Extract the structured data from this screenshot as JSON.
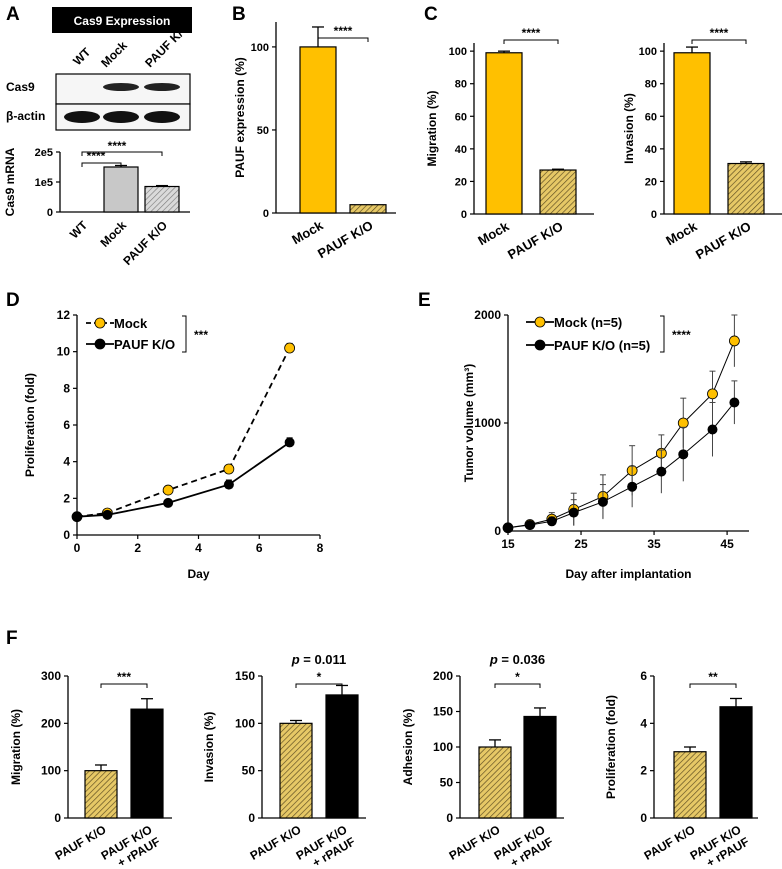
{
  "colors": {
    "yellow": "#FFC000",
    "hatch_bg": "#E6C866",
    "black": "#000000",
    "gray_bar": "#C8C8C8",
    "gray_hatch": "#D4D4D4"
  },
  "labels": {
    "A": "A",
    "B": "B",
    "C": "C",
    "D": "D",
    "E": "E",
    "F": "F"
  },
  "panel_a": {
    "header": "Cas9  Expression",
    "lanes": [
      "WT",
      "Mock",
      "PAUF K/O"
    ],
    "rows": [
      "Cas9",
      "β-actin"
    ],
    "sig": [
      "****",
      "****"
    ]
  },
  "chart_data": [
    {
      "id": "a_mrna",
      "type": "bar",
      "ylabel": "Cas9 mRNA",
      "categories": [
        "WT",
        "Mock",
        "PAUF K/O"
      ],
      "values": [
        0,
        150000,
        85000
      ],
      "errors": [
        0,
        5000,
        3000
      ],
      "ylim": [
        0,
        200000
      ],
      "yticks": [
        0,
        100000,
        200000
      ],
      "yticklabels": [
        "0",
        "1e5",
        "2e5"
      ],
      "styles": [
        "gray",
        "gray",
        "grayhatch"
      ]
    },
    {
      "id": "b",
      "type": "bar",
      "ylabel": "PAUF expression (%)",
      "categories": [
        "Mock",
        "PAUF K/O"
      ],
      "values": [
        100,
        5
      ],
      "errors": [
        12,
        0
      ],
      "ylim": [
        0,
        115
      ],
      "yticks": [
        0,
        50,
        100
      ],
      "yticklabels": [
        "0",
        "50",
        "100"
      ],
      "styles": [
        "yellow",
        "hatch"
      ],
      "sig": "****"
    },
    {
      "id": "c1",
      "type": "bar",
      "ylabel": "Migration (%)",
      "categories": [
        "Mock",
        "PAUF K/O"
      ],
      "values": [
        99,
        27
      ],
      "errors": [
        1,
        0.5
      ],
      "ylim": [
        0,
        105
      ],
      "yticks": [
        0,
        20,
        40,
        60,
        80,
        100
      ],
      "yticklabels": [
        "0",
        "20",
        "40",
        "60",
        "80",
        "100"
      ],
      "styles": [
        "yellow",
        "hatch"
      ],
      "sig": "****"
    },
    {
      "id": "c2",
      "type": "bar",
      "ylabel": "Invasion (%)",
      "categories": [
        "Mock",
        "PAUF K/O"
      ],
      "values": [
        99,
        31
      ],
      "errors": [
        3.5,
        1
      ],
      "ylim": [
        0,
        105
      ],
      "yticks": [
        0,
        20,
        40,
        60,
        80,
        100
      ],
      "yticklabels": [
        "0",
        "20",
        "40",
        "60",
        "80",
        "100"
      ],
      "styles": [
        "yellow",
        "hatch"
      ],
      "sig": "****"
    },
    {
      "id": "d",
      "type": "line",
      "xlabel": "Day",
      "ylabel": "Proliferation (fold)",
      "xlim": [
        0,
        8
      ],
      "ylim": [
        0,
        12
      ],
      "xticks": [
        0,
        2,
        4,
        6,
        8
      ],
      "yticks": [
        0,
        2,
        4,
        6,
        8,
        10,
        12
      ],
      "series": [
        {
          "name": "Mock",
          "x": [
            0,
            1,
            3,
            5,
            7
          ],
          "y": [
            1,
            1.2,
            2.45,
            3.6,
            10.2
          ],
          "err": [
            0.05,
            0.1,
            0.1,
            0.2,
            0.25
          ],
          "style": "dashed",
          "marker": "yellow"
        },
        {
          "name": "PAUF K/O",
          "x": [
            0,
            1,
            3,
            5,
            7
          ],
          "y": [
            1,
            1.1,
            1.75,
            2.75,
            5.05
          ],
          "err": [
            0.05,
            0.05,
            0.1,
            0.25,
            0.25
          ],
          "style": "solid",
          "marker": "black"
        }
      ],
      "sig": "***"
    },
    {
      "id": "e",
      "type": "line",
      "xlabel": "Day after implantation",
      "ylabel": "Tumor volume (mm³)",
      "xlim": [
        15,
        48
      ],
      "ylim": [
        0,
        2000
      ],
      "xticks": [
        15,
        25,
        35,
        45
      ],
      "yticks": [
        0,
        1000,
        2000
      ],
      "series": [
        {
          "name": "Mock (n=5)",
          "x": [
            15,
            18,
            21,
            24,
            28,
            32,
            36,
            39,
            43,
            46
          ],
          "y": [
            30,
            60,
            110,
            200,
            320,
            560,
            720,
            1000,
            1270,
            1760
          ],
          "err": [
            10,
            20,
            60,
            150,
            200,
            230,
            170,
            230,
            210,
            240
          ],
          "style": "solid",
          "marker": "yellow"
        },
        {
          "name": "PAUF K/O (n=5)",
          "x": [
            15,
            18,
            21,
            24,
            28,
            32,
            36,
            39,
            43,
            46
          ],
          "y": [
            30,
            55,
            90,
            170,
            270,
            410,
            550,
            710,
            940,
            1190
          ],
          "err": [
            10,
            15,
            40,
            120,
            160,
            190,
            200,
            250,
            250,
            200
          ],
          "style": "solid",
          "marker": "black"
        }
      ],
      "sig": "****"
    },
    {
      "id": "f1",
      "type": "bar",
      "ylabel": "Migration (%)",
      "categories": [
        "PAUF K/O",
        "PAUF K/O\n+ rPAUF"
      ],
      "values": [
        100,
        230
      ],
      "errors": [
        12,
        22
      ],
      "ylim": [
        0,
        300
      ],
      "yticks": [
        0,
        100,
        200,
        300
      ],
      "yticklabels": [
        "0",
        "100",
        "200",
        "300"
      ],
      "styles": [
        "hatch",
        "black"
      ],
      "sig": "***"
    },
    {
      "id": "f2",
      "type": "bar",
      "ylabel": "Invasion (%)",
      "categories": [
        "PAUF K/O",
        "PAUF K/O\n+ rPAUF"
      ],
      "values": [
        100,
        130
      ],
      "errors": [
        3,
        10
      ],
      "ylim": [
        0,
        150
      ],
      "yticks": [
        0,
        50,
        100,
        150
      ],
      "yticklabels": [
        "0",
        "50",
        "100",
        "150"
      ],
      "styles": [
        "hatch",
        "black"
      ],
      "sig": "*",
      "pvalue": "= 0.011"
    },
    {
      "id": "f3",
      "type": "bar",
      "ylabel": "Adhesion (%)",
      "categories": [
        "PAUF K/O",
        "PAUF K/O\n+ rPAUF"
      ],
      "values": [
        100,
        143
      ],
      "errors": [
        10,
        12
      ],
      "ylim": [
        0,
        200
      ],
      "yticks": [
        0,
        50,
        100,
        150,
        200
      ],
      "yticklabels": [
        "0",
        "50",
        "100",
        "150",
        "200"
      ],
      "styles": [
        "hatch",
        "black"
      ],
      "sig": "*",
      "pvalue": "= 0.036"
    },
    {
      "id": "f4",
      "type": "bar",
      "ylabel": "Proliferation (fold)",
      "categories": [
        "PAUF K/O",
        "PAUF K/O\n+ rPAUF"
      ],
      "values": [
        2.8,
        4.7
      ],
      "errors": [
        0.2,
        0.35
      ],
      "ylim": [
        0,
        6
      ],
      "yticks": [
        0,
        2,
        4,
        6
      ],
      "yticklabels": [
        "0",
        "2",
        "4",
        "6"
      ],
      "styles": [
        "hatch",
        "black"
      ],
      "sig": "**"
    }
  ]
}
